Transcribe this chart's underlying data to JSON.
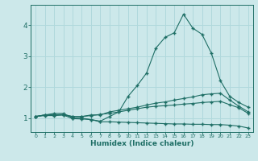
{
  "xlabel": "Humidex (Indice chaleur)",
  "bg_color": "#cce8ea",
  "grid_color": "#b0d8dc",
  "line_color": "#1e6e65",
  "xlim": [
    -0.5,
    23.5
  ],
  "ylim": [
    0.55,
    4.65
  ],
  "xticks": [
    0,
    1,
    2,
    3,
    4,
    5,
    6,
    7,
    8,
    9,
    10,
    11,
    12,
    13,
    14,
    15,
    16,
    17,
    18,
    19,
    20,
    21,
    22,
    23
  ],
  "yticks": [
    1,
    2,
    3,
    4
  ],
  "line1_x": [
    0,
    1,
    2,
    3,
    4,
    5,
    6,
    7,
    8,
    9,
    10,
    11,
    12,
    13,
    14,
    15,
    16,
    17,
    18,
    19,
    20,
    21,
    22,
    23
  ],
  "line1_y": [
    1.05,
    1.1,
    1.15,
    1.15,
    1.0,
    1.0,
    0.95,
    0.9,
    1.05,
    1.2,
    1.7,
    2.05,
    2.45,
    3.25,
    3.6,
    3.75,
    4.35,
    3.9,
    3.7,
    3.1,
    2.2,
    1.7,
    1.5,
    1.35
  ],
  "line2_x": [
    0,
    1,
    2,
    3,
    4,
    5,
    6,
    7,
    8,
    9,
    10,
    11,
    12,
    13,
    14,
    15,
    16,
    17,
    18,
    19,
    20,
    21,
    22,
    23
  ],
  "line2_y": [
    1.05,
    1.1,
    1.1,
    1.1,
    1.05,
    1.05,
    1.1,
    1.1,
    1.2,
    1.25,
    1.3,
    1.35,
    1.42,
    1.48,
    1.52,
    1.58,
    1.63,
    1.68,
    1.75,
    1.78,
    1.8,
    1.58,
    1.38,
    1.2
  ],
  "line3_x": [
    0,
    1,
    2,
    3,
    4,
    5,
    6,
    7,
    8,
    9,
    10,
    11,
    12,
    13,
    14,
    15,
    16,
    17,
    18,
    19,
    20,
    21,
    22,
    23
  ],
  "line3_y": [
    1.05,
    1.1,
    1.1,
    1.12,
    1.05,
    1.05,
    1.08,
    1.12,
    1.15,
    1.2,
    1.25,
    1.3,
    1.35,
    1.38,
    1.4,
    1.42,
    1.45,
    1.47,
    1.5,
    1.52,
    1.54,
    1.43,
    1.33,
    1.15
  ],
  "line4_x": [
    0,
    1,
    2,
    3,
    4,
    5,
    6,
    7,
    8,
    9,
    10,
    11,
    12,
    13,
    14,
    15,
    16,
    17,
    18,
    19,
    20,
    21,
    22,
    23
  ],
  "line4_y": [
    1.05,
    1.08,
    1.08,
    1.1,
    0.98,
    0.97,
    0.95,
    0.88,
    0.88,
    0.87,
    0.86,
    0.85,
    0.84,
    0.83,
    0.82,
    0.81,
    0.81,
    0.8,
    0.8,
    0.79,
    0.79,
    0.77,
    0.74,
    0.68
  ]
}
